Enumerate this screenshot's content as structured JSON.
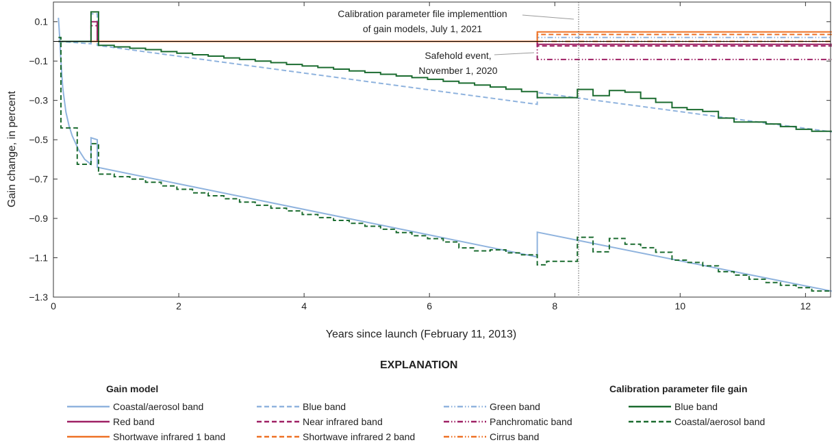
{
  "chart_data": {
    "type": "line",
    "xlabel": "Years since launch (February 11, 2013)",
    "ylabel": "Gain change, in percent",
    "xlim": [
      0,
      12.4
    ],
    "ylim": [
      -1.3,
      0.2
    ],
    "xticks": [
      0,
      2,
      4,
      6,
      8,
      10,
      12
    ],
    "yticks": [
      0.1,
      -0.1,
      -0.3,
      -0.5,
      -0.7,
      -0.9,
      -1.1,
      -1.3
    ],
    "grid": false,
    "zero_line": true,
    "annotations": [
      {
        "lines": [
          "Calibration parameter file implementtion",
          "of gain models, July 1, 2021"
        ],
        "x": 8.38,
        "style": "vertical-dotted-line"
      },
      {
        "lines": [
          "Safehold event,",
          "November 1, 2020"
        ],
        "x": 7.72
      }
    ],
    "legend": {
      "title": "EXPLANATION",
      "group_gain_model": "Gain model",
      "group_cpf": "Calibration parameter file gain",
      "placement": "bottom"
    },
    "series": [
      {
        "name": "Coastal/aerosol band",
        "group": "Gain model",
        "color": "#8fb3de",
        "style": "solid",
        "points": [
          [
            0.08,
            0.12
          ],
          [
            0.1,
            0.02
          ],
          [
            0.12,
            -0.1
          ],
          [
            0.15,
            -0.24
          ],
          [
            0.2,
            -0.36
          ],
          [
            0.25,
            -0.43
          ],
          [
            0.3,
            -0.48
          ],
          [
            0.4,
            -0.55
          ],
          [
            0.5,
            -0.6
          ],
          [
            0.6,
            -0.625
          ],
          [
            0.6,
            -0.49
          ],
          [
            0.7,
            -0.5
          ],
          [
            0.7,
            -0.64
          ],
          [
            7.72,
            -1.096
          ],
          [
            7.72,
            -0.97
          ],
          [
            12.42,
            -1.27
          ]
        ]
      },
      {
        "name": "Blue band",
        "group": "Gain model",
        "color": "#8fb3de",
        "style": "dashed",
        "points": [
          [
            0.08,
            0
          ],
          [
            0.6,
            -0.012
          ],
          [
            0.6,
            0.14
          ],
          [
            0.7,
            0.14
          ],
          [
            0.7,
            -0.02
          ],
          [
            7.72,
            -0.32
          ],
          [
            7.72,
            -0.26
          ],
          [
            12.42,
            -0.46
          ]
        ]
      },
      {
        "name": "Green band",
        "group": "Gain model",
        "color": "#8fb3de",
        "style": "dash-dot-dot",
        "points": [
          [
            0.08,
            0
          ],
          [
            7.72,
            0
          ],
          [
            7.72,
            0.02
          ],
          [
            12.42,
            0.02
          ]
        ]
      },
      {
        "name": "Red band",
        "group": "Gain model",
        "color": "#9e1f63",
        "style": "solid",
        "points": [
          [
            0.08,
            0
          ],
          [
            0.6,
            0
          ],
          [
            0.6,
            0.1
          ],
          [
            0.7,
            0.1
          ],
          [
            0.7,
            0
          ],
          [
            7.72,
            0
          ],
          [
            7.72,
            -0.015
          ],
          [
            12.42,
            -0.015
          ]
        ]
      },
      {
        "name": "Near infrared band",
        "group": "Gain model",
        "color": "#9e1f63",
        "style": "dashed",
        "points": [
          [
            0.08,
            0
          ],
          [
            0.6,
            0
          ],
          [
            0.6,
            0.08
          ],
          [
            0.7,
            0.08
          ],
          [
            0.7,
            0
          ],
          [
            7.72,
            0
          ],
          [
            7.72,
            -0.023
          ],
          [
            12.42,
            -0.023
          ]
        ]
      },
      {
        "name": "Panchromatic band",
        "group": "Gain model",
        "color": "#9e1f63",
        "style": "dash-dot-dot",
        "points": [
          [
            0.08,
            0
          ],
          [
            7.72,
            0
          ],
          [
            7.72,
            -0.092
          ],
          [
            12.42,
            -0.092
          ]
        ]
      },
      {
        "name": "Shortwave infrared 1 band",
        "group": "Gain model",
        "color": "#ee7023",
        "style": "solid",
        "points": [
          [
            0.08,
            0
          ],
          [
            7.72,
            0
          ],
          [
            7.72,
            0.048
          ],
          [
            12.42,
            0.048
          ]
        ]
      },
      {
        "name": "Shortwave infrared 2 band",
        "group": "Gain model",
        "color": "#ee7023",
        "style": "dashed",
        "points": [
          [
            0.08,
            0
          ],
          [
            7.72,
            0
          ],
          [
            7.72,
            0.035
          ],
          [
            12.42,
            0.035
          ]
        ]
      },
      {
        "name": "Cirrus band",
        "group": "Gain model",
        "color": "#ee7023",
        "style": "dash-dot-dot",
        "points": [
          [
            0.08,
            0
          ],
          [
            12.42,
            0
          ]
        ]
      },
      {
        "name": "Blue band",
        "group": "Calibration parameter file gain",
        "color": "#1a6b2f",
        "style": "solid-step",
        "points": [
          [
            0.08,
            0
          ],
          [
            0.6,
            -0.005
          ],
          [
            0.6,
            0.15
          ],
          [
            0.72,
            0.15
          ],
          [
            0.72,
            -0.02
          ],
          [
            0.97,
            -0.028
          ],
          [
            1.22,
            -0.035
          ],
          [
            1.47,
            -0.042
          ],
          [
            1.72,
            -0.052
          ],
          [
            1.97,
            -0.06
          ],
          [
            2.22,
            -0.068
          ],
          [
            2.47,
            -0.075
          ],
          [
            2.72,
            -0.084
          ],
          [
            2.97,
            -0.092
          ],
          [
            3.22,
            -0.1
          ],
          [
            3.47,
            -0.108
          ],
          [
            3.72,
            -0.117
          ],
          [
            3.97,
            -0.125
          ],
          [
            4.22,
            -0.133
          ],
          [
            4.47,
            -0.141
          ],
          [
            4.72,
            -0.15
          ],
          [
            4.97,
            -0.158
          ],
          [
            5.22,
            -0.167
          ],
          [
            5.47,
            -0.176
          ],
          [
            5.72,
            -0.184
          ],
          [
            5.97,
            -0.193
          ],
          [
            6.22,
            -0.203
          ],
          [
            6.47,
            -0.212
          ],
          [
            6.72,
            -0.222
          ],
          [
            6.97,
            -0.232
          ],
          [
            7.22,
            -0.243
          ],
          [
            7.47,
            -0.255
          ],
          [
            7.72,
            -0.286
          ],
          [
            8.36,
            -0.244
          ],
          [
            8.61,
            -0.276
          ],
          [
            8.87,
            -0.25
          ],
          [
            9.12,
            -0.258
          ],
          [
            9.37,
            -0.29
          ],
          [
            9.61,
            -0.31
          ],
          [
            9.87,
            -0.337
          ],
          [
            10.11,
            -0.347
          ],
          [
            10.36,
            -0.356
          ],
          [
            10.61,
            -0.39
          ],
          [
            10.86,
            -0.41
          ],
          [
            11.1,
            -0.41
          ],
          [
            11.37,
            -0.42
          ],
          [
            11.6,
            -0.433
          ],
          [
            11.85,
            -0.447
          ],
          [
            12.1,
            -0.457
          ],
          [
            12.42,
            -0.457
          ]
        ]
      },
      {
        "name": "Coastal/aerosol band",
        "group": "Calibration parameter file gain",
        "color": "#1a6b2f",
        "style": "dashed-step",
        "points": [
          [
            0.08,
            0.02
          ],
          [
            0.12,
            -0.44
          ],
          [
            0.38,
            -0.625
          ],
          [
            0.6,
            -0.52
          ],
          [
            0.72,
            -0.675
          ],
          [
            0.97,
            -0.688
          ],
          [
            1.22,
            -0.7
          ],
          [
            1.47,
            -0.716
          ],
          [
            1.72,
            -0.735
          ],
          [
            1.97,
            -0.752
          ],
          [
            2.22,
            -0.77
          ],
          [
            2.47,
            -0.785
          ],
          [
            2.72,
            -0.8
          ],
          [
            2.97,
            -0.817
          ],
          [
            3.22,
            -0.833
          ],
          [
            3.47,
            -0.848
          ],
          [
            3.72,
            -0.862
          ],
          [
            3.97,
            -0.88
          ],
          [
            4.22,
            -0.896
          ],
          [
            4.47,
            -0.91
          ],
          [
            4.72,
            -0.925
          ],
          [
            4.97,
            -0.94
          ],
          [
            5.22,
            -0.955
          ],
          [
            5.47,
            -0.972
          ],
          [
            5.72,
            -0.988
          ],
          [
            5.97,
            -1.003
          ],
          [
            6.22,
            -1.02
          ],
          [
            6.47,
            -1.05
          ],
          [
            6.72,
            -1.065
          ],
          [
            6.97,
            -1.06
          ],
          [
            7.22,
            -1.075
          ],
          [
            7.47,
            -1.085
          ],
          [
            7.72,
            -1.136
          ],
          [
            7.87,
            -1.118
          ],
          [
            8.36,
            -0.996
          ],
          [
            8.61,
            -1.07
          ],
          [
            8.87,
            -1.002
          ],
          [
            9.12,
            -1.031
          ],
          [
            9.37,
            -1.049
          ],
          [
            9.61,
            -1.072
          ],
          [
            9.87,
            -1.112
          ],
          [
            10.11,
            -1.124
          ],
          [
            10.36,
            -1.141
          ],
          [
            10.61,
            -1.171
          ],
          [
            10.86,
            -1.188
          ],
          [
            11.1,
            -1.209
          ],
          [
            11.37,
            -1.226
          ],
          [
            11.6,
            -1.24
          ],
          [
            11.85,
            -1.252
          ],
          [
            12.1,
            -1.269
          ],
          [
            12.42,
            -1.269
          ]
        ]
      }
    ]
  }
}
